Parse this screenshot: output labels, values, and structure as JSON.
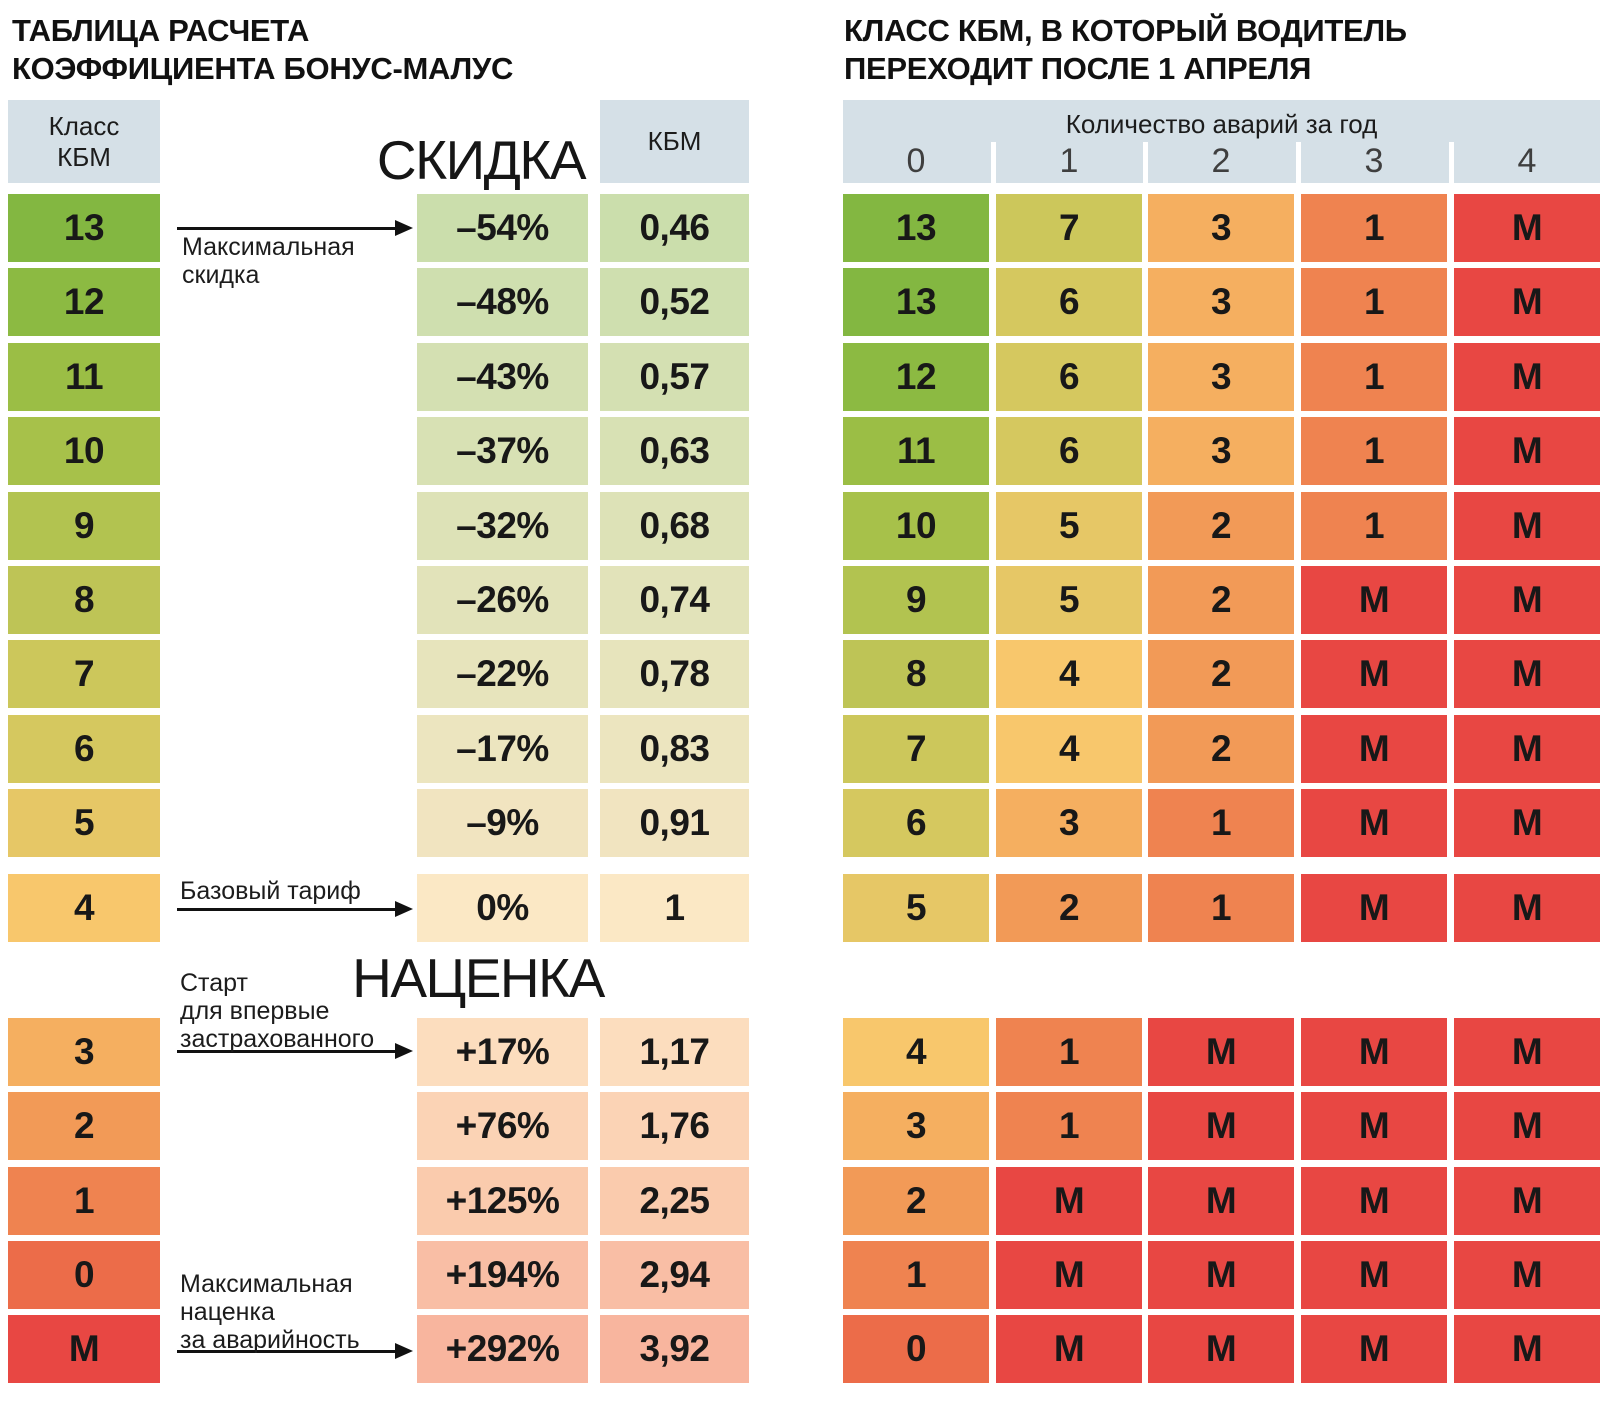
{
  "palette": {
    "13": "#83B741",
    "12": "#8CBA42",
    "11": "#9BBE45",
    "10": "#A7C14A",
    "9": "#B2C350",
    "8": "#BEC456",
    "7": "#CCC75B",
    "6": "#D5C85F",
    "5": "#E6C766",
    "4": "#F8C76C",
    "3": "#F5AF60",
    "2": "#F29A57",
    "1": "#EF8350",
    "0": "#EC6C49",
    "М": "#E84743"
  },
  "header_bg": "#D5E0E7",
  "left_table": {
    "title": "ТАБЛИЦА РАСЧЕТА\nКОЭФФИЦИЕНТА БОНУС-МАЛУС",
    "class_header": "Класс\nКБМ",
    "kbm_header": "КБМ",
    "discount_section_label": "СКИДКА",
    "surcharge_section_label": "НАЦЕНКА",
    "rows": [
      {
        "class": "13",
        "discount": "–54%",
        "kbm": "0,46",
        "cell_color": "#CBDEAC"
      },
      {
        "class": "12",
        "discount": "–48%",
        "kbm": "0,52",
        "cell_color": "#CFDFAF"
      },
      {
        "class": "11",
        "discount": "–43%",
        "kbm": "0,57",
        "cell_color": "#D4E0B2"
      },
      {
        "class": "10",
        "discount": "–37%",
        "kbm": "0,63",
        "cell_color": "#D8E1B4"
      },
      {
        "class": "9",
        "discount": "–32%",
        "kbm": "0,68",
        "cell_color": "#DDE2B7"
      },
      {
        "class": "8",
        "discount": "–26%",
        "kbm": "0,74",
        "cell_color": "#E2E3BA"
      },
      {
        "class": "7",
        "discount": "–22%",
        "kbm": "0,78",
        "cell_color": "#E7E4BC"
      },
      {
        "class": "6",
        "discount": "–17%",
        "kbm": "0,83",
        "cell_color": "#ECE5BF"
      },
      {
        "class": "5",
        "discount": "–9%",
        "kbm": "0,91",
        "cell_color": "#F1E4C0"
      },
      {
        "class": "4",
        "discount": "0%",
        "kbm": "1",
        "cell_color": "#FBE8C5"
      },
      {
        "class": "3",
        "discount": "+17%",
        "kbm": "1,17",
        "cell_color": "#FCDDBE"
      },
      {
        "class": "2",
        "discount": "+76%",
        "kbm": "1,76",
        "cell_color": "#FBD3B5"
      },
      {
        "class": "1",
        "discount": "+125%",
        "kbm": "2,25",
        "cell_color": "#FACBAD"
      },
      {
        "class": "0",
        "discount": "+194%",
        "kbm": "2,94",
        "cell_color": "#F9BEA5"
      },
      {
        "class": "М",
        "discount": "+292%",
        "kbm": "3,92",
        "cell_color": "#F8B59E"
      }
    ]
  },
  "annotations": {
    "max_discount": "Максимальная\nскидка",
    "base_rate": "Базовый тариф",
    "first_insured": "Старт\nдля впервые\nзастрахованного",
    "max_surcharge": "Максимальная\nнаценка\nза аварийность"
  },
  "right_table": {
    "title": "КЛАСС КБМ, В КОТОРЫЙ ВОДИТЕЛЬ\nПЕРЕХОДИТ ПОСЛЕ 1 АПРЕЛЯ",
    "accidents_header": "Количество аварий за год",
    "accident_counts": [
      "0",
      "1",
      "2",
      "3",
      "4"
    ],
    "rows": [
      {
        "class": "13",
        "cells": [
          "7",
          "3",
          "1",
          "М"
        ]
      },
      {
        "class": "13",
        "cells": [
          "6",
          "3",
          "1",
          "М"
        ]
      },
      {
        "class": "12",
        "cells": [
          "6",
          "3",
          "1",
          "М"
        ]
      },
      {
        "class": "11",
        "cells": [
          "6",
          "3",
          "1",
          "М"
        ]
      },
      {
        "class": "10",
        "cells": [
          "5",
          "2",
          "1",
          "М"
        ]
      },
      {
        "class": "9",
        "cells": [
          "5",
          "2",
          "М",
          "М"
        ]
      },
      {
        "class": "8",
        "cells": [
          "4",
          "2",
          "М",
          "М"
        ]
      },
      {
        "class": "7",
        "cells": [
          "4",
          "2",
          "М",
          "М"
        ]
      },
      {
        "class": "6",
        "cells": [
          "3",
          "1",
          "М",
          "М"
        ]
      },
      {
        "class": "5",
        "cells": [
          "2",
          "1",
          "М",
          "М"
        ]
      },
      {
        "class": "4",
        "cells": [
          "1",
          "М",
          "М",
          "М"
        ]
      },
      {
        "class": "3",
        "cells": [
          "1",
          "М",
          "М",
          "М"
        ]
      },
      {
        "class": "2",
        "cells": [
          "М",
          "М",
          "М",
          "М"
        ]
      },
      {
        "class": "1",
        "cells": [
          "М",
          "М",
          "М",
          "М"
        ]
      },
      {
        "class": "0",
        "cells": [
          "М",
          "М",
          "М",
          "М"
        ]
      }
    ]
  },
  "chart_data": [
    {
      "type": "table",
      "title": "ТАБЛИЦА РАСЧЕТА КОЭФФИЦИЕНТА БОНУС-МАЛУС",
      "columns": [
        "Класс КБМ",
        "Скидка",
        "КБМ"
      ],
      "rows": [
        [
          "13",
          "–54%",
          "0,46"
        ],
        [
          "12",
          "–48%",
          "0,52"
        ],
        [
          "11",
          "–43%",
          "0,57"
        ],
        [
          "10",
          "–37%",
          "0,63"
        ],
        [
          "9",
          "–32%",
          "0,68"
        ],
        [
          "8",
          "–26%",
          "0,74"
        ],
        [
          "7",
          "–22%",
          "0,78"
        ],
        [
          "6",
          "–17%",
          "0,83"
        ],
        [
          "5",
          "–9%",
          "0,91"
        ],
        [
          "4",
          "0%",
          "1"
        ],
        [
          "3",
          "+17%",
          "1,17"
        ],
        [
          "2",
          "+76%",
          "1,76"
        ],
        [
          "1",
          "+125%",
          "2,25"
        ],
        [
          "0",
          "+194%",
          "2,94"
        ],
        [
          "М",
          "+292%",
          "3,92"
        ]
      ]
    },
    {
      "type": "table",
      "title": "КЛАСС КБМ, В КОТОРЫЙ ВОДИТЕЛЬ ПЕРЕХОДИТ ПОСЛЕ 1 АПРЕЛЯ",
      "columns": [
        "Класс КБМ",
        "0 аварий",
        "1 авария",
        "2 аварии",
        "3 аварии",
        "4 аварии"
      ],
      "rows": [
        [
          "13",
          "13",
          "7",
          "3",
          "1",
          "М"
        ],
        [
          "12",
          "13",
          "6",
          "3",
          "1",
          "М"
        ],
        [
          "11",
          "12",
          "6",
          "3",
          "1",
          "М"
        ],
        [
          "10",
          "11",
          "6",
          "3",
          "1",
          "М"
        ],
        [
          "9",
          "10",
          "5",
          "2",
          "1",
          "М"
        ],
        [
          "8",
          "9",
          "5",
          "2",
          "М",
          "М"
        ],
        [
          "7",
          "8",
          "4",
          "2",
          "М",
          "М"
        ],
        [
          "6",
          "7",
          "4",
          "2",
          "М",
          "М"
        ],
        [
          "5",
          "6",
          "3",
          "1",
          "М",
          "М"
        ],
        [
          "4",
          "5",
          "2",
          "1",
          "М",
          "М"
        ],
        [
          "3",
          "4",
          "1",
          "М",
          "М",
          "М"
        ],
        [
          "2",
          "3",
          "1",
          "М",
          "М",
          "М"
        ],
        [
          "1",
          "2",
          "М",
          "М",
          "М",
          "М"
        ],
        [
          "0",
          "1",
          "М",
          "М",
          "М",
          "М"
        ],
        [
          "М",
          "0",
          "М",
          "М",
          "М",
          "М"
        ]
      ]
    }
  ]
}
